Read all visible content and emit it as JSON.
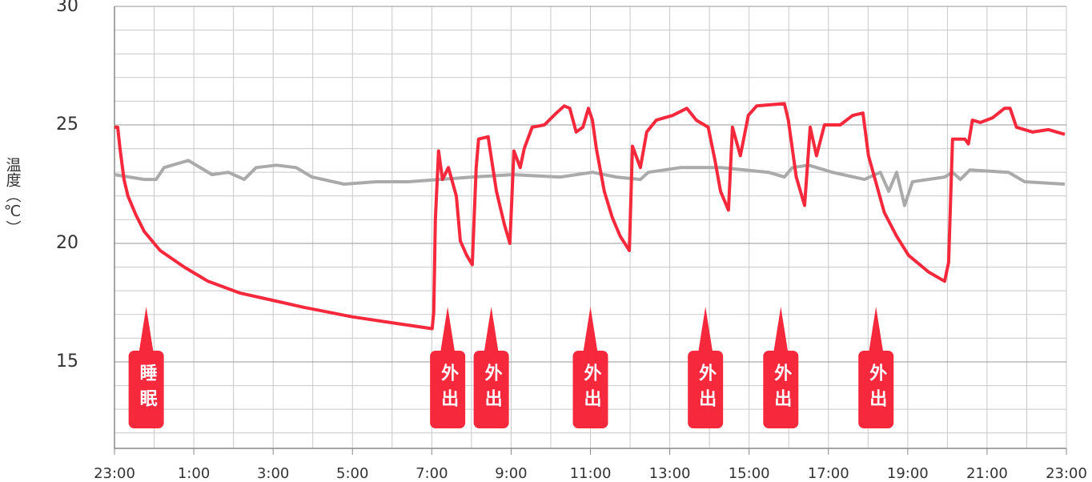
{
  "chart_data": {
    "type": "line",
    "y_label": "温度（℃）",
    "xlim": [
      0,
      24
    ],
    "xticks": [
      {
        "value": 0,
        "label": "23:00"
      },
      {
        "value": 2,
        "label": "1:00"
      },
      {
        "value": 4,
        "label": "3:00"
      },
      {
        "value": 6,
        "label": "5:00"
      },
      {
        "value": 8,
        "label": "7:00"
      },
      {
        "value": 10,
        "label": "9:00"
      },
      {
        "value": 12,
        "label": "11:00"
      },
      {
        "value": 14,
        "label": "13:00"
      },
      {
        "value": 16,
        "label": "15:00"
      },
      {
        "value": 18,
        "label": "17:00"
      },
      {
        "value": 20,
        "label": "19:00"
      },
      {
        "value": 22,
        "label": "21:00"
      },
      {
        "value": 24,
        "label": "23:00"
      }
    ],
    "ylim": [
      11.35,
      30
    ],
    "yticks": [
      15,
      20,
      25,
      30
    ],
    "grid": true,
    "xgrid_step": 1,
    "ygrid_step": 1,
    "series": [
      {
        "color": "#f5283c",
        "x": [
          0,
          0.08,
          0.14,
          0.24,
          0.34,
          0.54,
          0.75,
          1.15,
          1.76,
          2.36,
          3.17,
          3.98,
          4.78,
          5.99,
          7.2,
          8.01,
          8.05,
          8.09,
          8.17,
          8.27,
          8.42,
          8.62,
          8.72,
          8.88,
          9.02,
          9.12,
          9.18,
          9.42,
          9.63,
          9.83,
          9.97,
          10.07,
          10.23,
          10.33,
          10.53,
          10.84,
          11.14,
          11.34,
          11.48,
          11.64,
          11.81,
          11.95,
          12.05,
          12.15,
          12.35,
          12.55,
          12.75,
          12.98,
          13.06,
          13.26,
          13.42,
          13.66,
          14.07,
          14.43,
          14.67,
          14.97,
          15.14,
          15.28,
          15.48,
          15.58,
          15.78,
          15.98,
          16.19,
          16.89,
          16.99,
          17.19,
          17.4,
          17.54,
          17.7,
          17.9,
          18.3,
          18.61,
          18.87,
          19.01,
          19.21,
          19.41,
          19.72,
          20.02,
          20.52,
          20.93,
          21.03,
          21.13,
          21.44,
          21.53,
          21.63,
          21.83,
          22.14,
          22.44,
          22.58,
          22.74,
          23.15,
          23.55,
          23.96
        ],
        "values": [
          24.9,
          24.9,
          24.0,
          22.7,
          22.0,
          21.2,
          20.5,
          19.7,
          19.0,
          18.4,
          17.9,
          17.6,
          17.3,
          16.9,
          16.6,
          16.4,
          17.1,
          21.0,
          23.9,
          22.7,
          23.2,
          22.0,
          20.1,
          19.5,
          19.1,
          23.2,
          24.4,
          24.5,
          22.2,
          20.8,
          20.0,
          23.9,
          23.2,
          24.0,
          24.9,
          25.0,
          25.5,
          25.8,
          25.7,
          24.7,
          24.9,
          25.7,
          25.2,
          24.0,
          22.2,
          21.1,
          20.3,
          19.7,
          24.1,
          23.2,
          24.7,
          25.2,
          25.4,
          25.7,
          25.2,
          24.9,
          23.5,
          22.2,
          21.4,
          24.9,
          23.7,
          25.4,
          25.8,
          25.9,
          25.2,
          22.8,
          21.6,
          24.9,
          23.7,
          25.0,
          25.0,
          25.4,
          25.5,
          23.7,
          22.5,
          21.3,
          20.3,
          19.5,
          18.8,
          18.4,
          19.2,
          24.4,
          24.4,
          24.2,
          25.2,
          25.1,
          25.3,
          25.7,
          25.7,
          24.9,
          24.7,
          24.8,
          24.6
        ]
      },
      {
        "color": "#aaaaaa",
        "x": [
          0,
          0.75,
          1.05,
          1.25,
          1.86,
          2.46,
          2.87,
          3.27,
          3.57,
          4.08,
          4.58,
          4.98,
          5.79,
          6.6,
          7.41,
          8.21,
          9.02,
          10.03,
          11.24,
          12.05,
          12.65,
          13.26,
          13.46,
          14.27,
          15.28,
          16.49,
          16.89,
          17.09,
          17.5,
          18.1,
          18.91,
          19.31,
          19.52,
          19.72,
          19.92,
          20.12,
          20.93,
          21.13,
          21.33,
          21.57,
          22.54,
          22.95,
          23.96
        ],
        "values": [
          22.9,
          22.7,
          22.7,
          23.2,
          23.5,
          22.9,
          23.0,
          22.7,
          23.2,
          23.3,
          23.2,
          22.8,
          22.5,
          22.6,
          22.6,
          22.7,
          22.8,
          22.9,
          22.8,
          23.0,
          22.8,
          22.7,
          23.0,
          23.2,
          23.2,
          23.0,
          22.8,
          23.2,
          23.3,
          23.0,
          22.7,
          23.0,
          22.2,
          23.0,
          21.6,
          22.6,
          22.8,
          23.0,
          22.7,
          23.1,
          23.0,
          22.6,
          22.5
        ]
      }
    ],
    "annotations": [
      {
        "text": "睡眠",
        "x": 0.8
      },
      {
        "text": "外出",
        "x": 8.4
      },
      {
        "text": "外出",
        "x": 9.5
      },
      {
        "text": "外出",
        "x": 12.0
      },
      {
        "text": "外出",
        "x": 14.9
      },
      {
        "text": "外出",
        "x": 16.8
      },
      {
        "text": "外出",
        "x": 19.2
      }
    ]
  }
}
